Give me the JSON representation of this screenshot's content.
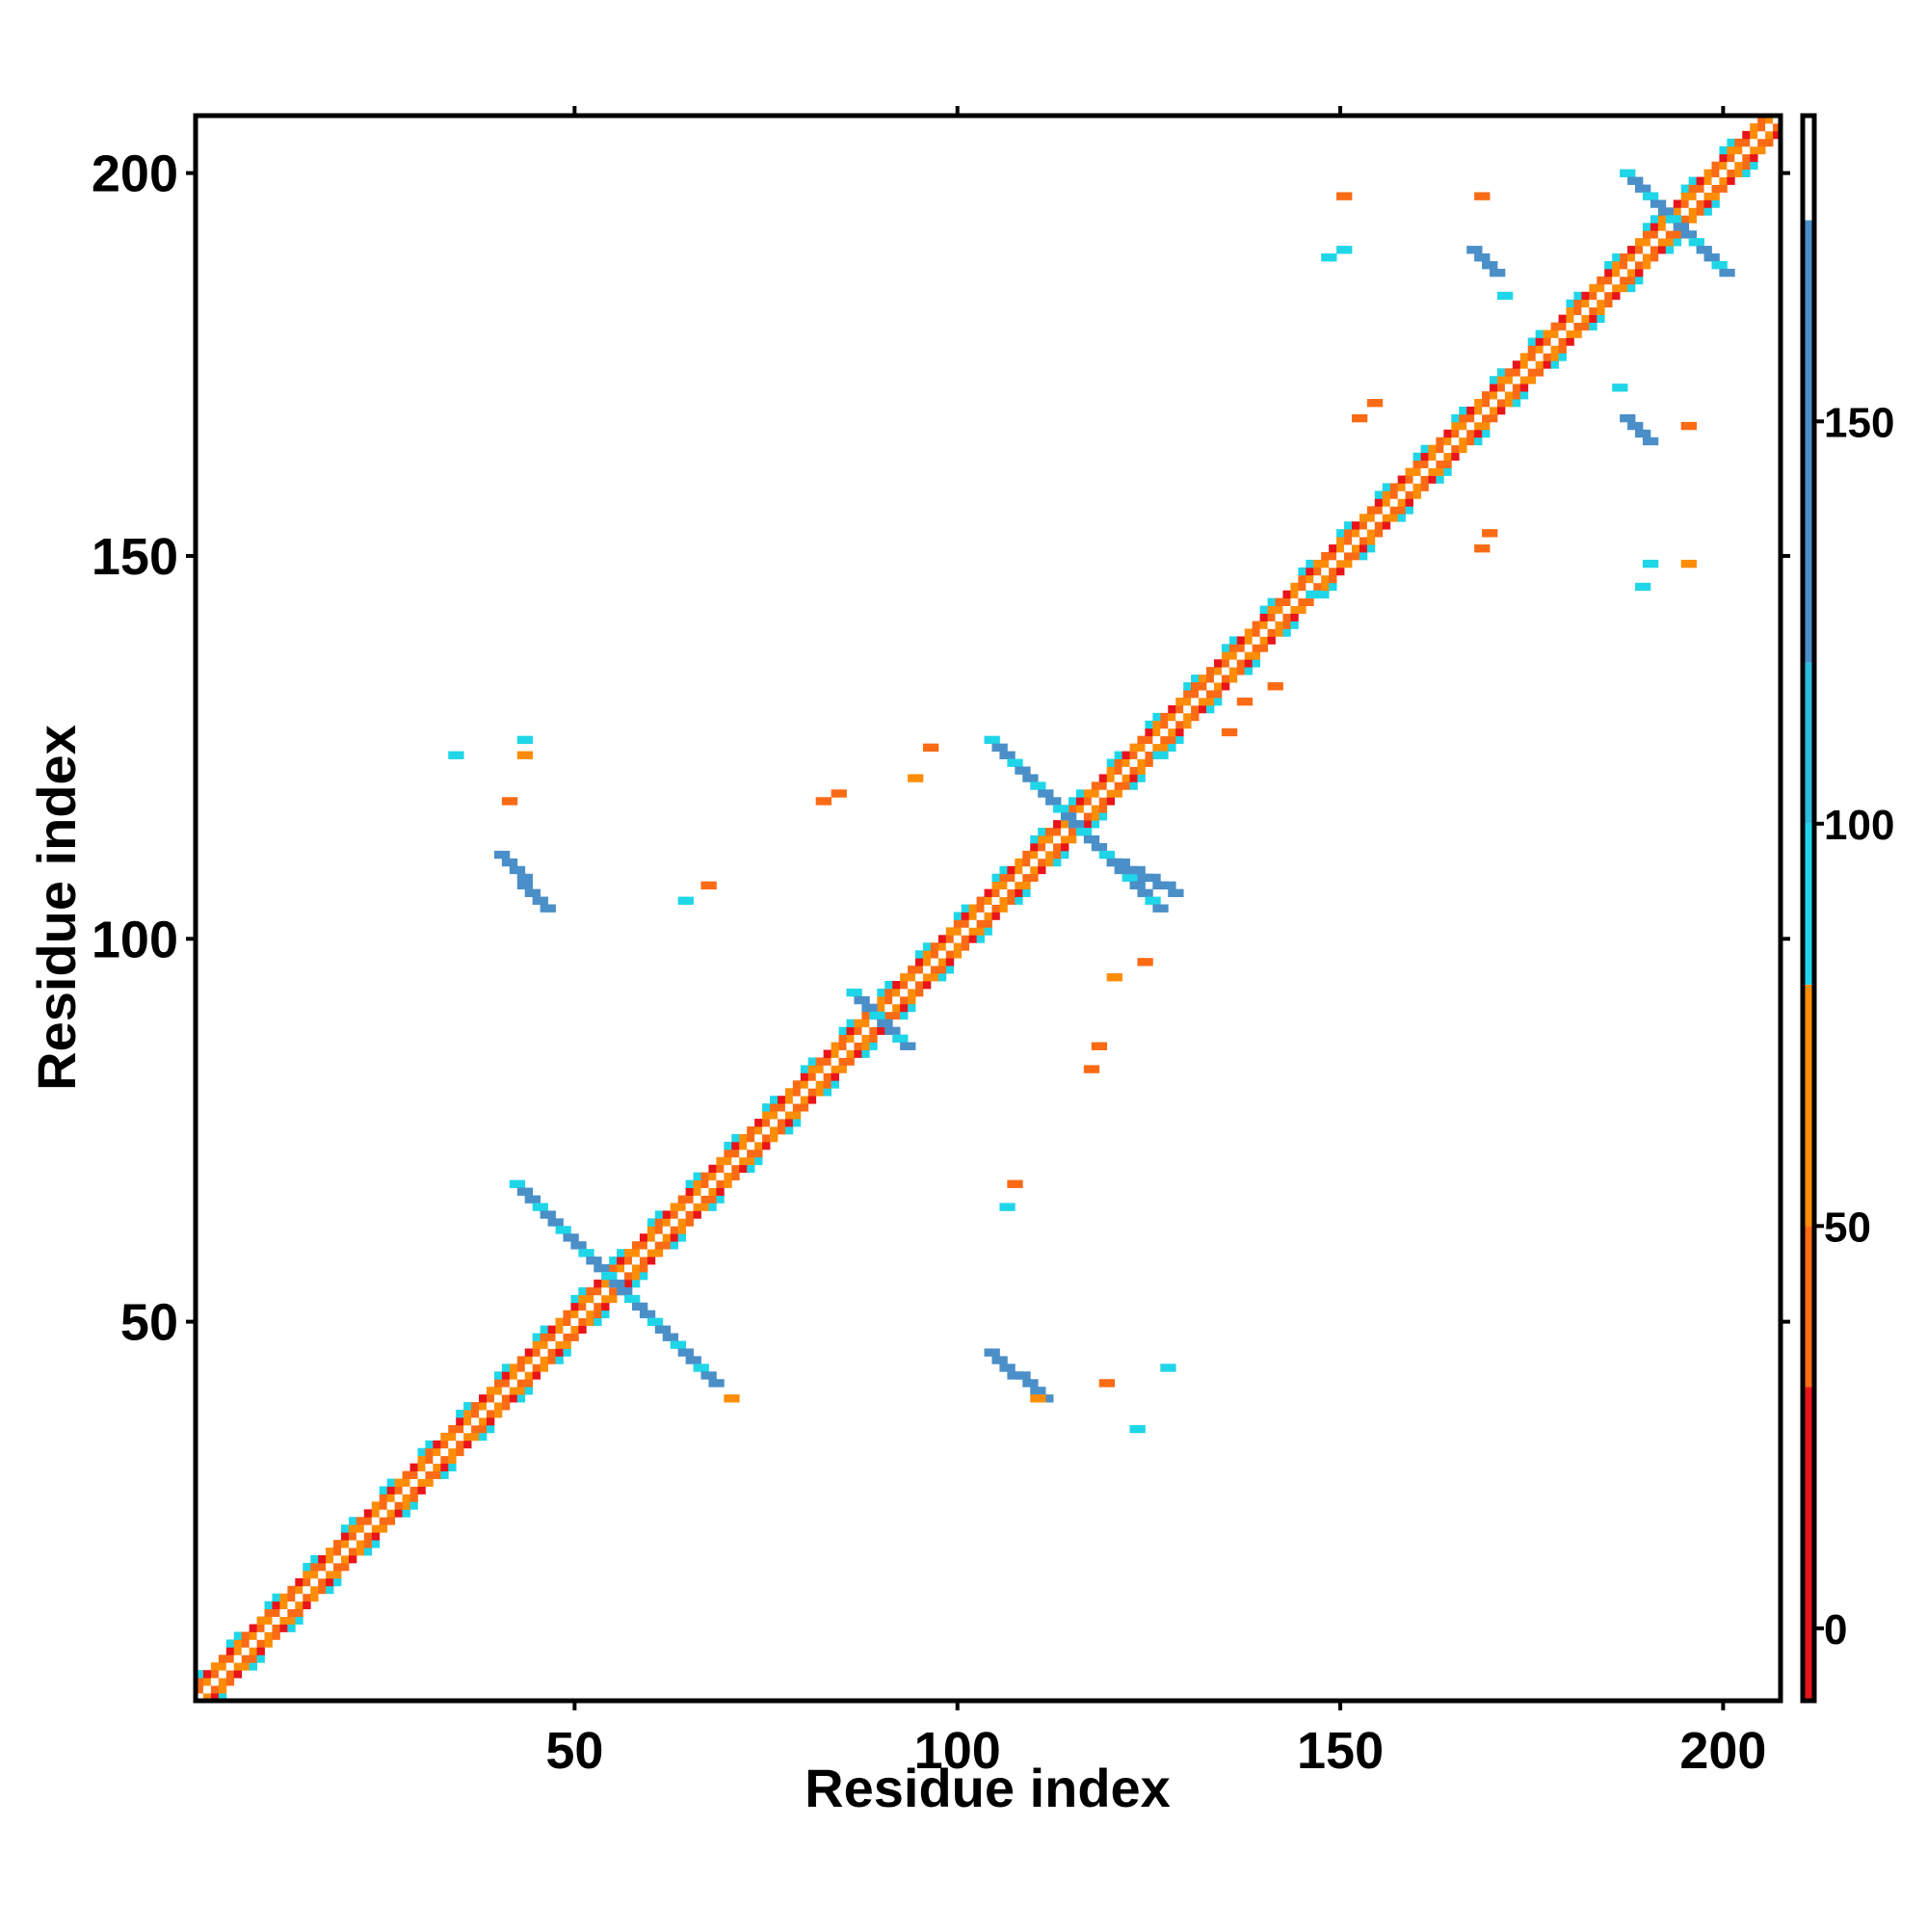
{
  "chart_data": {
    "type": "heatmap",
    "title": "",
    "xlabel": "Residue index",
    "ylabel": "Residue index",
    "xlim": [
      1,
      207
    ],
    "ylim": [
      1,
      207
    ],
    "x_ticks": [
      "50",
      "100",
      "150",
      "200"
    ],
    "y_ticks": [
      "50",
      "100",
      "150",
      "200"
    ],
    "colorbar": {
      "range": [
        -9,
        188
      ],
      "ticks": [
        "0",
        "50",
        "100",
        "150"
      ],
      "bands": [
        {
          "from": -9,
          "to": 30,
          "color": "#e8141a"
        },
        {
          "from": 30,
          "to": 50,
          "color": "#fb6a14"
        },
        {
          "from": 50,
          "to": 80,
          "color": "#fd8d06"
        },
        {
          "from": 80,
          "to": 100,
          "color": "#1fd6e8"
        },
        {
          "from": 100,
          "to": 120,
          "color": "#2bbcdb"
        },
        {
          "from": 120,
          "to": 175,
          "color": "#4a8fc8"
        },
        {
          "from": 175,
          "to": 188,
          "color": "#ffffff"
        }
      ]
    },
    "diagonal": {
      "from": 1,
      "to": 207
    },
    "helix_crosses": [
      {
        "center": [
          55,
          55
        ],
        "cells": [
          [
            42,
            68
          ],
          [
            68,
            42
          ]
        ]
      },
      {
        "center": [
          91,
          91
        ],
        "cells": [
          [
            86,
            93
          ],
          [
            93,
            86
          ]
        ]
      },
      {
        "center": [
          115,
          115
        ],
        "cells": [
          [
            104,
            126
          ],
          [
            126,
            104
          ]
        ]
      },
      {
        "center": [
          192,
          192
        ],
        "cells": [
          [
            187,
            200
          ],
          [
            200,
            187
          ]
        ]
      }
    ],
    "antiparallel_blocks": [
      {
        "x": [
          40,
          46
        ],
        "y": [
          104,
          111
        ],
        "color": "#4a8fc8"
      },
      {
        "x": [
          104,
          111
        ],
        "y": [
          40,
          46
        ],
        "color": "#4a8fc8"
      },
      {
        "x": [
          120,
          128
        ],
        "y": [
          106,
          110
        ],
        "color": "#4a8fc8"
      },
      {
        "x": [
          167,
          170
        ],
        "y": [
          187,
          190
        ],
        "color": "#4a8fc8"
      },
      {
        "x": [
          187,
          190
        ],
        "y": [
          165,
          168
        ],
        "color": "#4a8fc8"
      }
    ],
    "contacts": [
      {
        "x": 150,
        "y": 197,
        "v": 45
      },
      {
        "x": 168,
        "y": 197,
        "v": 40
      },
      {
        "x": 148,
        "y": 189,
        "v": 90
      },
      {
        "x": 150,
        "y": 190,
        "v": 95
      },
      {
        "x": 171,
        "y": 184,
        "v": 95
      },
      {
        "x": 152,
        "y": 168,
        "v": 45
      },
      {
        "x": 154,
        "y": 170,
        "v": 45
      },
      {
        "x": 169,
        "y": 153,
        "v": 40
      },
      {
        "x": 168,
        "y": 151,
        "v": 40
      },
      {
        "x": 195,
        "y": 167,
        "v": 35
      },
      {
        "x": 186,
        "y": 172,
        "v": 95
      },
      {
        "x": 190,
        "y": 149,
        "v": 90
      },
      {
        "x": 189,
        "y": 146,
        "v": 90
      },
      {
        "x": 195,
        "y": 149,
        "v": 60
      },
      {
        "x": 43,
        "y": 126,
        "v": 95
      },
      {
        "x": 34,
        "y": 124,
        "v": 95
      },
      {
        "x": 43,
        "y": 124,
        "v": 60
      },
      {
        "x": 41,
        "y": 118,
        "v": 45
      },
      {
        "x": 84,
        "y": 119,
        "v": 40
      },
      {
        "x": 82,
        "y": 118,
        "v": 40
      },
      {
        "x": 96,
        "y": 125,
        "v": 35
      },
      {
        "x": 94,
        "y": 121,
        "v": 60
      },
      {
        "x": 67,
        "y": 107,
        "v": 35
      },
      {
        "x": 64,
        "y": 105,
        "v": 90
      },
      {
        "x": 124,
        "y": 97,
        "v": 35
      },
      {
        "x": 120,
        "y": 95,
        "v": 60
      },
      {
        "x": 118,
        "y": 86,
        "v": 40
      },
      {
        "x": 117,
        "y": 83,
        "v": 40
      },
      {
        "x": 107,
        "y": 68,
        "v": 45
      },
      {
        "x": 106,
        "y": 65,
        "v": 90
      },
      {
        "x": 119,
        "y": 42,
        "v": 45
      },
      {
        "x": 127,
        "y": 44,
        "v": 95
      },
      {
        "x": 123,
        "y": 36,
        "v": 95
      },
      {
        "x": 70,
        "y": 40,
        "v": 60
      },
      {
        "x": 110,
        "y": 40,
        "v": 60
      },
      {
        "x": 146,
        "y": 145,
        "v": 90
      },
      {
        "x": 141,
        "y": 133,
        "v": 30
      },
      {
        "x": 137,
        "y": 131,
        "v": 35
      },
      {
        "x": 126,
        "y": 124,
        "v": 95
      },
      {
        "x": 135,
        "y": 127,
        "v": 35
      },
      {
        "x": 131,
        "y": 133,
        "v": 45
      }
    ]
  }
}
